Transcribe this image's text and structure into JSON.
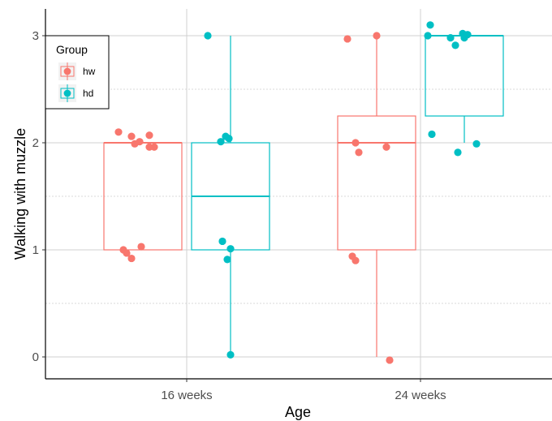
{
  "chart_data": {
    "type": "boxplot",
    "title": "",
    "xlabel": "Age",
    "ylabel": "Walking with muzzle",
    "categories": [
      "16 weeks",
      "24 weeks"
    ],
    "y_ticks": [
      "0",
      "1",
      "2",
      "3"
    ],
    "ylim": [
      -0.2,
      3.25
    ],
    "grid": true,
    "legend": {
      "title": "Group",
      "position": "top-left"
    },
    "series": [
      {
        "name": "hw",
        "color": "#F8766D",
        "boxes": [
          {
            "category": "16 weeks",
            "min": 1,
            "q1": 1,
            "median": 2,
            "q3": 2,
            "max": 2
          },
          {
            "category": "24 weeks",
            "min": 0,
            "q1": 1,
            "median": 2,
            "q3": 2.25,
            "max": 3
          }
        ],
        "points": [
          {
            "category": "16 weeks",
            "y": [
              2.1,
              2.06,
              1.99,
              2.01,
              2.07,
              1.96,
              1.96,
              1.0,
              0.97,
              0.92,
              1.03
            ]
          },
          {
            "category": "24 weeks",
            "y": [
              2.97,
              3.0,
              2.0,
              1.91,
              1.96,
              0.94,
              0.9,
              -0.03
            ]
          }
        ]
      },
      {
        "name": "hd",
        "color": "#00BFC4",
        "boxes": [
          {
            "category": "16 weeks",
            "min": 0,
            "q1": 1,
            "median": 1.5,
            "q3": 2,
            "max": 3
          },
          {
            "category": "24 weeks",
            "min": 2,
            "q1": 2.25,
            "median": 3,
            "q3": 3,
            "max": 3
          }
        ],
        "points": [
          {
            "category": "16 weeks",
            "y": [
              3.0,
              2.01,
              2.06,
              2.04,
              1.08,
              1.01,
              0.91,
              0.02
            ]
          },
          {
            "category": "24 weeks",
            "y": [
              3.1,
              3.0,
              2.98,
              3.02,
              2.91,
              3.01,
              2.98,
              2.08,
              1.91,
              1.99
            ]
          }
        ]
      }
    ]
  }
}
